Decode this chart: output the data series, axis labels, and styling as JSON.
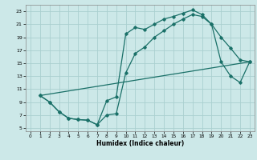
{
  "xlabel": "Humidex (Indice chaleur)",
  "xlim": [
    -0.5,
    23.5
  ],
  "ylim": [
    4.5,
    24
  ],
  "xticks": [
    0,
    1,
    2,
    3,
    4,
    5,
    6,
    7,
    8,
    9,
    10,
    11,
    12,
    13,
    14,
    15,
    16,
    17,
    18,
    19,
    20,
    21,
    22,
    23
  ],
  "yticks": [
    5,
    7,
    9,
    11,
    13,
    15,
    17,
    19,
    21,
    23
  ],
  "bg_color": "#cce8e8",
  "grid_color": "#aad0d0",
  "line_color": "#1a7068",
  "line1_x": [
    1,
    2,
    3,
    4,
    5,
    6,
    7,
    8,
    9,
    10,
    11,
    12,
    13,
    14,
    15,
    16,
    17,
    18,
    19,
    20,
    21,
    22,
    23
  ],
  "line1_y": [
    10,
    9,
    7.5,
    6.5,
    6.3,
    6.2,
    5.5,
    9.2,
    9.8,
    19.5,
    20.5,
    20.2,
    21.0,
    21.8,
    22.2,
    22.7,
    23.2,
    22.5,
    21.0,
    19.0,
    17.3,
    15.5,
    15.2
  ],
  "line2_x": [
    1,
    2,
    3,
    4,
    5,
    6,
    7,
    8,
    9,
    10,
    11,
    12,
    13,
    14,
    15,
    16,
    17,
    18,
    19,
    20,
    21,
    22,
    23
  ],
  "line2_y": [
    10,
    9,
    7.5,
    6.5,
    6.3,
    6.2,
    5.5,
    7.0,
    7.2,
    13.5,
    16.5,
    17.5,
    19.0,
    20.0,
    21.0,
    21.8,
    22.5,
    22.2,
    21.0,
    15.2,
    13.0,
    12.0,
    15.2
  ],
  "line3_x": [
    1,
    23
  ],
  "line3_y": [
    10,
    15.2
  ]
}
